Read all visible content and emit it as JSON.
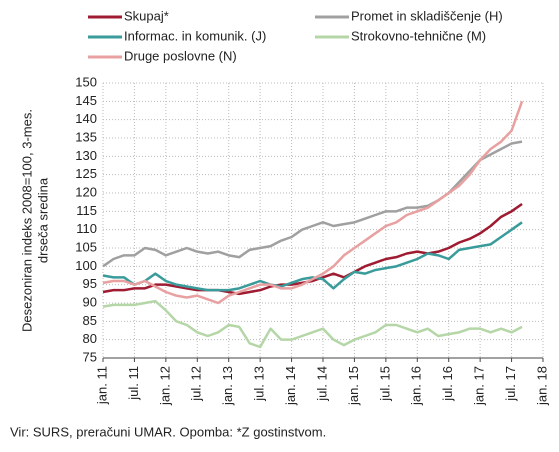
{
  "chart_data": {
    "type": "line",
    "y_label": [
      "Desezoniran indeks 2008=100, 3-mes.",
      "drseča sredina"
    ],
    "note": "Vir: SURS, preračuni UMAR. Opomba: *Z gostinstvom.",
    "categories": [
      "jan. 11",
      null,
      null,
      "jul. 11",
      null,
      null,
      "jan. 12",
      null,
      null,
      "jul. 12",
      null,
      null,
      "jan. 13",
      null,
      null,
      "jul. 13",
      null,
      null,
      "jan. 14",
      null,
      null,
      "jul. 14",
      null,
      null,
      "jan. 15",
      null,
      null,
      "jul. 15",
      null,
      null,
      "jan. 16",
      null,
      null,
      "jul. 16",
      null,
      null,
      "jan. 17",
      null,
      null,
      "jul. 17",
      null,
      null,
      "jan. 18"
    ],
    "series": [
      {
        "name": "Skupaj*",
        "color": "#9e1b32",
        "values": [
          93,
          93.5,
          93.5,
          94,
          94,
          95,
          95,
          94.5,
          94,
          93.5,
          93.5,
          93.5,
          93,
          92.5,
          93,
          93.5,
          94.5,
          95,
          95,
          95.5,
          96,
          97,
          98,
          97,
          98.5,
          100,
          101,
          102,
          102.5,
          103.5,
          104,
          103.5,
          104,
          105,
          106.5,
          107.5,
          109,
          111,
          113.5,
          115,
          117,
          null,
          null
        ]
      },
      {
        "name": "Promet in skladiščenje (H)",
        "color": "#a0a0a0",
        "values": [
          100,
          102,
          103,
          103,
          105,
          104.5,
          103,
          104,
          105,
          104,
          103.5,
          104,
          103,
          102.5,
          104.5,
          105,
          105.5,
          107,
          108,
          110,
          111,
          112,
          111,
          111.5,
          112,
          113,
          114,
          115,
          115,
          116,
          116,
          116.5,
          118,
          120,
          123,
          126,
          129,
          130.5,
          132,
          133.5,
          134,
          null,
          null
        ]
      },
      {
        "name": "Informac. in komunik. (J)",
        "color": "#3a9b9b",
        "values": [
          97.5,
          97,
          97,
          95,
          96,
          98,
          96,
          95,
          94.5,
          94,
          93.5,
          93.5,
          93.5,
          94,
          95,
          96,
          95,
          94.5,
          95.5,
          96.5,
          97,
          96.5,
          94,
          96.5,
          98.5,
          98,
          99,
          99.5,
          100,
          101,
          102,
          103.5,
          103,
          102,
          104.5,
          105,
          105.5,
          106,
          108,
          110,
          112,
          null,
          null
        ]
      },
      {
        "name": "Strokovno-tehnične (M)",
        "color": "#b5d6a7",
        "values": [
          89,
          89.5,
          89.5,
          89.5,
          90,
          90.5,
          88,
          85,
          84,
          82,
          81,
          82,
          84,
          83.5,
          79,
          78,
          83,
          80,
          80,
          81,
          82,
          83,
          80,
          78.5,
          80,
          81,
          82,
          84,
          84,
          83,
          82,
          83,
          81,
          81.5,
          82,
          83,
          83,
          82,
          83,
          82,
          83.5,
          null,
          null
        ]
      },
      {
        "name": "Druge poslovne (N)",
        "color": "#e8a0a0",
        "values": [
          95.5,
          96,
          96,
          95,
          96,
          94.5,
          93,
          92,
          91.5,
          92,
          91,
          90,
          92,
          93,
          94,
          95,
          95,
          94,
          94,
          95,
          96.5,
          98,
          100,
          103,
          105,
          107,
          109,
          111,
          112,
          114,
          115,
          116,
          118,
          120,
          122,
          125,
          129,
          132,
          134,
          137,
          145,
          null,
          null
        ]
      }
    ],
    "ylim": [
      75,
      150
    ],
    "yticks": [
      75,
      80,
      85,
      90,
      95,
      100,
      105,
      110,
      115,
      120,
      125,
      130,
      135,
      140,
      145,
      150
    ],
    "grid": true
  }
}
